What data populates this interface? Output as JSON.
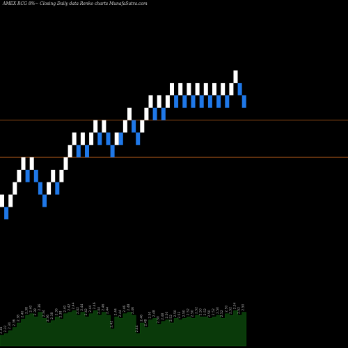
{
  "header": {
    "title": "AMEX  RCG 8%~  Closing Daily data  Renko  charts MunafaSutra.com"
  },
  "chart_data": {
    "type": "renko",
    "box_size": 0.02,
    "ylim": [
      2.18,
      2.64
    ],
    "colors": {
      "up": "#ffffff",
      "down": "#1f78e8",
      "hline": "#c8641e",
      "volume": "#0a3a0a",
      "volume_label": "#b0b0b0"
    },
    "horizontal_lines": [
      2.48,
      2.42
    ],
    "bricks": [
      {
        "dir": "up",
        "bottom": 2.34
      },
      {
        "dir": "down",
        "bottom": 2.32
      },
      {
        "dir": "up",
        "bottom": 2.34
      },
      {
        "dir": "up",
        "bottom": 2.36
      },
      {
        "dir": "up",
        "bottom": 2.38
      },
      {
        "dir": "up",
        "bottom": 2.4
      },
      {
        "dir": "down",
        "bottom": 2.38
      },
      {
        "dir": "up",
        "bottom": 2.4
      },
      {
        "dir": "down",
        "bottom": 2.38
      },
      {
        "dir": "down",
        "bottom": 2.36
      },
      {
        "dir": "down",
        "bottom": 2.34
      },
      {
        "dir": "up",
        "bottom": 2.36
      },
      {
        "dir": "up",
        "bottom": 2.38
      },
      {
        "dir": "down",
        "bottom": 2.36
      },
      {
        "dir": "up",
        "bottom": 2.38
      },
      {
        "dir": "up",
        "bottom": 2.4
      },
      {
        "dir": "up",
        "bottom": 2.42
      },
      {
        "dir": "up",
        "bottom": 2.44
      },
      {
        "dir": "down",
        "bottom": 2.42
      },
      {
        "dir": "up",
        "bottom": 2.44
      },
      {
        "dir": "down",
        "bottom": 2.42
      },
      {
        "dir": "up",
        "bottom": 2.44
      },
      {
        "dir": "up",
        "bottom": 2.46
      },
      {
        "dir": "down",
        "bottom": 2.44
      },
      {
        "dir": "up",
        "bottom": 2.46
      },
      {
        "dir": "down",
        "bottom": 2.44
      },
      {
        "dir": "down",
        "bottom": 2.42
      },
      {
        "dir": "up",
        "bottom": 2.44
      },
      {
        "dir": "down",
        "bottom": 2.44
      },
      {
        "dir": "up",
        "bottom": 2.46
      },
      {
        "dir": "up",
        "bottom": 2.48
      },
      {
        "dir": "down",
        "bottom": 2.46
      },
      {
        "dir": "down",
        "bottom": 2.44
      },
      {
        "dir": "up",
        "bottom": 2.46
      },
      {
        "dir": "up",
        "bottom": 2.48
      },
      {
        "dir": "up",
        "bottom": 2.5
      },
      {
        "dir": "down",
        "bottom": 2.48
      },
      {
        "dir": "up",
        "bottom": 2.5
      },
      {
        "dir": "down",
        "bottom": 2.48
      },
      {
        "dir": "up",
        "bottom": 2.5
      },
      {
        "dir": "up",
        "bottom": 2.52
      },
      {
        "dir": "down",
        "bottom": 2.5
      },
      {
        "dir": "up",
        "bottom": 2.52
      },
      {
        "dir": "down",
        "bottom": 2.5
      },
      {
        "dir": "up",
        "bottom": 2.52
      },
      {
        "dir": "down",
        "bottom": 2.5
      },
      {
        "dir": "up",
        "bottom": 2.52
      },
      {
        "dir": "down",
        "bottom": 2.5
      },
      {
        "dir": "up",
        "bottom": 2.52
      },
      {
        "dir": "down",
        "bottom": 2.5
      },
      {
        "dir": "up",
        "bottom": 2.52
      },
      {
        "dir": "down",
        "bottom": 2.5
      },
      {
        "dir": "up",
        "bottom": 2.52
      },
      {
        "dir": "down",
        "bottom": 2.5
      },
      {
        "dir": "up",
        "bottom": 2.52
      },
      {
        "dir": "up",
        "bottom": 2.54
      },
      {
        "dir": "down",
        "bottom": 2.52
      },
      {
        "dir": "down",
        "bottom": 2.5
      }
    ],
    "volume": {
      "values": [
        14,
        16,
        20,
        24,
        30,
        35,
        40,
        42,
        38,
        44,
        36,
        30,
        33,
        38,
        35,
        42,
        44,
        46,
        40,
        44,
        38,
        42,
        46,
        40,
        44,
        40,
        22,
        38,
        36,
        42,
        44,
        40,
        16,
        30,
        24,
        34,
        36,
        28,
        32,
        34,
        30,
        36,
        34,
        36,
        38,
        36,
        40,
        38,
        38,
        36,
        38,
        40,
        36,
        42,
        40,
        46,
        40,
        44
      ],
      "labels": [
        "2.34",
        "2.32",
        "2.34",
        "2.36",
        "2.38",
        "2.40",
        "2.38",
        "2.40",
        "2.38",
        "2.36",
        "2.34",
        "2.36",
        "2.38",
        "2.36",
        "2.38",
        "2.40",
        "2.42",
        "2.44",
        "2.42",
        "2.44",
        "2.42",
        "2.44",
        "2.46",
        "2.44",
        "2.46",
        "2.44",
        "2.42",
        "2.44",
        "2.44",
        "2.46",
        "2.48",
        "2.46",
        "2.44",
        "2.46",
        "2.48",
        "2.50",
        "2.48",
        "2.50",
        "2.48",
        "2.50",
        "2.52",
        "2.50",
        "2.52",
        "2.50",
        "2.52",
        "2.50",
        "2.52",
        "2.50",
        "2.52",
        "2.50",
        "2.52",
        "2.50",
        "2.52",
        "2.50",
        "2.52",
        "2.54",
        "2.52",
        "2.50"
      ]
    }
  }
}
